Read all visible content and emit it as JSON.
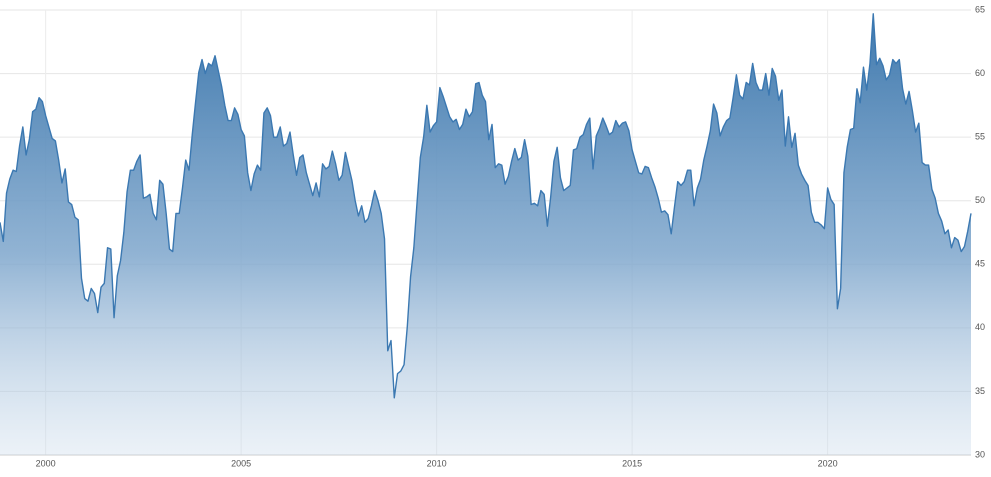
{
  "chart_data": {
    "type": "area",
    "x": [
      1998.833,
      1998.917,
      1999,
      1999.083,
      1999.167,
      1999.25,
      1999.333,
      1999.417,
      1999.5,
      1999.583,
      1999.667,
      1999.75,
      1999.833,
      1999.917,
      2000,
      2000.083,
      2000.167,
      2000.25,
      2000.333,
      2000.417,
      2000.5,
      2000.583,
      2000.667,
      2000.75,
      2000.833,
      2000.917,
      2001,
      2001.083,
      2001.167,
      2001.25,
      2001.333,
      2001.417,
      2001.5,
      2001.583,
      2001.667,
      2001.75,
      2001.833,
      2001.917,
      2002,
      2002.083,
      2002.167,
      2002.25,
      2002.333,
      2002.417,
      2002.5,
      2002.583,
      2002.667,
      2002.75,
      2002.833,
      2002.917,
      2003,
      2003.083,
      2003.167,
      2003.25,
      2003.333,
      2003.417,
      2003.5,
      2003.583,
      2003.667,
      2003.75,
      2003.833,
      2003.917,
      2004,
      2004.083,
      2004.167,
      2004.25,
      2004.333,
      2004.417,
      2004.5,
      2004.583,
      2004.667,
      2004.75,
      2004.833,
      2004.917,
      2005,
      2005.083,
      2005.167,
      2005.25,
      2005.333,
      2005.417,
      2005.5,
      2005.583,
      2005.667,
      2005.75,
      2005.833,
      2005.917,
      2006,
      2006.083,
      2006.167,
      2006.25,
      2006.333,
      2006.417,
      2006.5,
      2006.583,
      2006.667,
      2006.75,
      2006.833,
      2006.917,
      2007,
      2007.083,
      2007.167,
      2007.25,
      2007.333,
      2007.417,
      2007.5,
      2007.583,
      2007.667,
      2007.75,
      2007.833,
      2007.917,
      2008,
      2008.083,
      2008.167,
      2008.25,
      2008.333,
      2008.417,
      2008.5,
      2008.583,
      2008.667,
      2008.75,
      2008.833,
      2008.917,
      2009,
      2009.083,
      2009.167,
      2009.25,
      2009.333,
      2009.417,
      2009.5,
      2009.583,
      2009.667,
      2009.75,
      2009.833,
      2009.917,
      2010,
      2010.083,
      2010.167,
      2010.25,
      2010.333,
      2010.417,
      2010.5,
      2010.583,
      2010.667,
      2010.75,
      2010.833,
      2010.917,
      2011,
      2011.083,
      2011.167,
      2011.25,
      2011.333,
      2011.417,
      2011.5,
      2011.583,
      2011.667,
      2011.75,
      2011.833,
      2011.917,
      2012,
      2012.083,
      2012.167,
      2012.25,
      2012.333,
      2012.417,
      2012.5,
      2012.583,
      2012.667,
      2012.75,
      2012.833,
      2012.917,
      2013,
      2013.083,
      2013.167,
      2013.25,
      2013.333,
      2013.417,
      2013.5,
      2013.583,
      2013.667,
      2013.75,
      2013.833,
      2013.917,
      2014,
      2014.083,
      2014.167,
      2014.25,
      2014.333,
      2014.417,
      2014.5,
      2014.583,
      2014.667,
      2014.75,
      2014.833,
      2014.917,
      2015,
      2015.083,
      2015.167,
      2015.25,
      2015.333,
      2015.417,
      2015.5,
      2015.583,
      2015.667,
      2015.75,
      2015.833,
      2015.917,
      2016,
      2016.083,
      2016.167,
      2016.25,
      2016.333,
      2016.417,
      2016.5,
      2016.583,
      2016.667,
      2016.75,
      2016.833,
      2016.917,
      2017,
      2017.083,
      2017.167,
      2017.25,
      2017.333,
      2017.417,
      2017.5,
      2017.583,
      2017.667,
      2017.75,
      2017.833,
      2017.917,
      2018,
      2018.083,
      2018.167,
      2018.25,
      2018.333,
      2018.417,
      2018.5,
      2018.583,
      2018.667,
      2018.75,
      2018.833,
      2018.917,
      2019,
      2019.083,
      2019.167,
      2019.25,
      2019.333,
      2019.417,
      2019.5,
      2019.583,
      2019.667,
      2019.75,
      2019.833,
      2019.917,
      2020,
      2020.083,
      2020.167,
      2020.25,
      2020.333,
      2020.417,
      2020.5,
      2020.583,
      2020.667,
      2020.75,
      2020.833,
      2020.917,
      2021,
      2021.083,
      2021.167,
      2021.25,
      2021.333,
      2021.417,
      2021.5,
      2021.583,
      2021.667,
      2021.75,
      2021.833,
      2021.917,
      2022,
      2022.083,
      2022.167,
      2022.25,
      2022.333,
      2022.417,
      2022.5,
      2022.583,
      2022.667,
      2022.75,
      2022.833,
      2022.917,
      2023,
      2023.083,
      2023.167,
      2023.25,
      2023.333,
      2023.417,
      2023.5,
      2023.583,
      2023.667
    ],
    "values": [
      48.3,
      46.8,
      50.6,
      51.7,
      52.4,
      52.3,
      54.3,
      55.8,
      53.6,
      54.8,
      57.0,
      57.2,
      58.1,
      57.8,
      56.7,
      55.8,
      54.9,
      54.7,
      53.2,
      51.4,
      52.5,
      49.9,
      49.7,
      48.7,
      48.5,
      43.9,
      42.3,
      42.1,
      43.1,
      42.7,
      41.2,
      43.2,
      43.5,
      46.3,
      46.2,
      40.8,
      44.1,
      45.3,
      47.5,
      50.7,
      52.4,
      52.4,
      53.1,
      53.6,
      50.2,
      50.3,
      50.5,
      49.0,
      48.5,
      51.6,
      51.3,
      49.0,
      46.2,
      46.0,
      49.0,
      49.0,
      51.0,
      53.2,
      52.4,
      55.2,
      57.7,
      60.1,
      61.1,
      60.0,
      60.8,
      60.6,
      61.4,
      60.2,
      59.0,
      57.5,
      56.3,
      56.3,
      57.3,
      56.8,
      55.6,
      55.1,
      52.2,
      50.8,
      52.1,
      52.8,
      52.4,
      56.9,
      57.3,
      56.7,
      55.0,
      55.0,
      55.8,
      54.3,
      54.5,
      55.4,
      53.6,
      52.0,
      53.4,
      53.6,
      52.2,
      51.3,
      50.4,
      51.4,
      50.3,
      52.9,
      52.5,
      52.7,
      53.9,
      52.9,
      51.6,
      52.0,
      53.8,
      52.7,
      51.6,
      50.0,
      48.8,
      49.6,
      48.3,
      48.6,
      49.6,
      50.8,
      50.0,
      49.0,
      47.0,
      38.2,
      39.0,
      34.5,
      36.4,
      36.6,
      37.1,
      40.1,
      44.0,
      46.3,
      49.9,
      53.4,
      55.0,
      57.5,
      55.4,
      55.9,
      56.2,
      58.9,
      58.2,
      57.4,
      56.6,
      56.2,
      56.4,
      55.6,
      56.0,
      57.2,
      56.6,
      57.0,
      59.2,
      59.3,
      58.3,
      57.8,
      54.8,
      56.0,
      52.6,
      52.9,
      52.8,
      51.3,
      51.9,
      53.1,
      54.1,
      53.2,
      53.4,
      54.8,
      53.5,
      49.7,
      49.8,
      49.6,
      50.8,
      50.5,
      48.0,
      50.3,
      53.1,
      54.2,
      51.8,
      50.8,
      51.0,
      51.2,
      54.0,
      54.1,
      55.0,
      55.2,
      56.0,
      56.5,
      52.5,
      55.1,
      55.7,
      56.5,
      55.9,
      55.2,
      55.4,
      56.3,
      55.8,
      56.1,
      56.2,
      55.5,
      54.0,
      53.1,
      52.2,
      52.1,
      52.7,
      52.6,
      51.8,
      51.1,
      50.2,
      49.1,
      49.2,
      48.9,
      47.4,
      49.5,
      51.5,
      51.2,
      51.5,
      52.4,
      52.4,
      49.6,
      51.0,
      51.7,
      53.2,
      54.3,
      55.5,
      57.6,
      56.9,
      55.1,
      55.8,
      56.3,
      56.5,
      58.1,
      59.9,
      58.3,
      58.0,
      59.3,
      59.1,
      60.8,
      59.3,
      58.7,
      58.7,
      60.0,
      58.3,
      60.4,
      59.8,
      57.9,
      58.7,
      54.3,
      56.6,
      54.2,
      55.3,
      52.8,
      52.1,
      51.6,
      51.2,
      49.1,
      48.3,
      48.3,
      48.1,
      47.8,
      51.0,
      50.1,
      49.7,
      41.5,
      43.1,
      52.2,
      54.2,
      55.6,
      55.7,
      58.8,
      57.7,
      60.5,
      58.7,
      60.8,
      64.7,
      60.7,
      61.2,
      60.6,
      59.5,
      59.9,
      61.1,
      60.8,
      61.1,
      58.8,
      57.6,
      58.6,
      57.1,
      55.4,
      56.1,
      53.0,
      52.8,
      52.8,
      50.9,
      50.2,
      49.0,
      48.4,
      47.4,
      47.7,
      46.3,
      47.1,
      46.9,
      46.0,
      46.4,
      47.6,
      49.0
    ],
    "color": "#3b78b1",
    "xlim": [
      1998.833,
      2023.667
    ],
    "xticks": [
      2000,
      2005,
      2010,
      2015,
      2020
    ],
    "ylim": [
      30,
      65
    ],
    "yticks": [
      30,
      35,
      40,
      45,
      50,
      55,
      60,
      65
    ],
    "grid": true
  }
}
